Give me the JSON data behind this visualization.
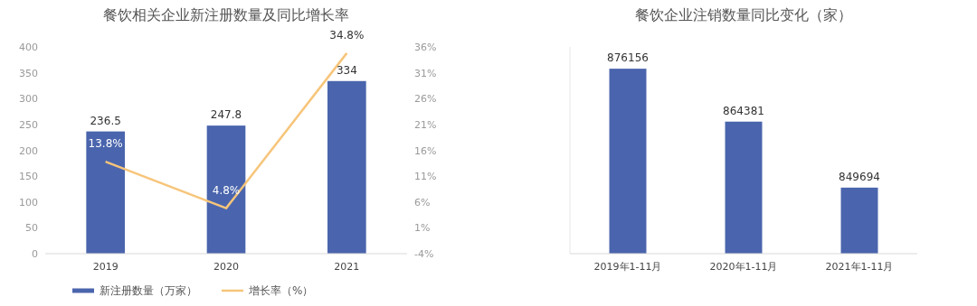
{
  "chart_data": [
    {
      "type": "bar",
      "title": "餐饮相关企业新注册数量及同比增长率",
      "categories": [
        "2019",
        "2020",
        "2021"
      ],
      "series": [
        {
          "name": "新注册数量（万家）",
          "color": "#4a65ad",
          "values": [
            236.5,
            247.8,
            334
          ],
          "value_labels": [
            "236.5",
            "247.8",
            "334"
          ]
        },
        {
          "name": "增长率（%）",
          "type": "line",
          "axis": "y2",
          "color": "#f7c57a",
          "values": [
            13.8,
            4.8,
            34.8
          ],
          "value_labels": [
            "13.8%",
            "4.8%",
            "34.8%"
          ]
        }
      ],
      "ylim": [
        0,
        400
      ],
      "yticks": [
        0,
        50,
        100,
        150,
        200,
        250,
        300,
        350,
        400
      ],
      "y2lim": [
        -4,
        36
      ],
      "y2ticks": [
        {
          "value": -4,
          "label": "-4%"
        },
        {
          "value": 1,
          "label": "1%"
        },
        {
          "value": 6,
          "label": "6%"
        },
        {
          "value": 11,
          "label": "11%"
        },
        {
          "value": 16,
          "label": "16%"
        },
        {
          "value": 21,
          "label": "21%"
        },
        {
          "value": 26,
          "label": "26%"
        },
        {
          "value": 31,
          "label": "31%"
        },
        {
          "value": 36,
          "label": "36%"
        }
      ],
      "grid": false,
      "legend": "bottom",
      "marker": "none",
      "line_style": "solid"
    },
    {
      "type": "bar",
      "title": "餐饮企业注销数量同比变化（家）",
      "categories": [
        "2019年1-11月",
        "2020年1-11月",
        "2021年1-11月"
      ],
      "values": [
        876156,
        864381,
        849694
      ],
      "color": "#4a65ad",
      "ylim": [
        835000,
        881000
      ],
      "data_labels": true,
      "tick_labels": "x",
      "grid": false,
      "legend": false
    }
  ]
}
